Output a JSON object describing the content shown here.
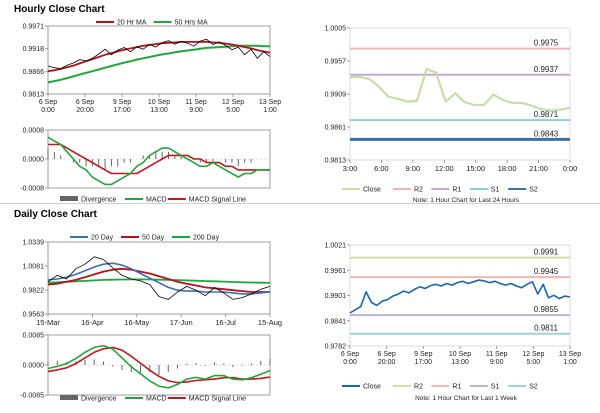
{
  "sections": {
    "hourly": "Hourly Close Chart",
    "daily": "Daily Close Chart"
  },
  "colors": {
    "price": "#000000",
    "ma_short": "#b5121b",
    "ma_long": "#1fa83a",
    "macd": "#1fa83a",
    "signal": "#c4161c",
    "divergence": "#666666",
    "close_h": "#c6dfaa",
    "close_d": "#1a66b3",
    "r2": "#f0b7b0",
    "r1": "#c8a7cf",
    "s1": "#8fcfd6",
    "s2": "#3a6fb0",
    "daily_r2": "#cfe0a5",
    "daily_r1": "#f2b8b0",
    "daily_s1": "#bfb2d3",
    "daily_s2": "#9fd2d9"
  },
  "chart_data": [
    {
      "id": "hourly-price",
      "type": "line",
      "title": "Hourly Close Chart",
      "legend": [
        "20 Hr MA",
        "50 Hrs MA"
      ],
      "yticks": [
        "0.9971",
        "0.9918",
        "0.9866",
        "0.9813"
      ],
      "ylim": [
        0.9813,
        0.9971
      ],
      "xticks": [
        [
          "6 Sep",
          "0:00"
        ],
        [
          "6 Sep",
          "20:00"
        ],
        [
          "9 Sep",
          "17:00"
        ],
        [
          "10 Sep",
          "13:00"
        ],
        [
          "11 Sep",
          "9:00"
        ],
        [
          "12 Sep",
          "5:00"
        ],
        [
          "13 Sep",
          "1:00"
        ]
      ],
      "series": [
        {
          "name": "Close",
          "values": [
            0.9878,
            0.9874,
            0.9872,
            0.988,
            0.9885,
            0.9893,
            0.989,
            0.9896,
            0.9906,
            0.9917,
            0.9904,
            0.9915,
            0.9921,
            0.9911,
            0.9923,
            0.9917,
            0.9928,
            0.9922,
            0.9932,
            0.9937,
            0.9929,
            0.9935,
            0.9931,
            0.9924,
            0.9936,
            0.994,
            0.9928,
            0.9934,
            0.9926,
            0.9916,
            0.9922,
            0.9904,
            0.9917,
            0.9896,
            0.9911,
            0.99
          ]
        },
        {
          "name": "20 Hr MA",
          "values": [
            0.9866,
            0.9868,
            0.9871,
            0.9875,
            0.9879,
            0.9884,
            0.9889,
            0.9894,
            0.9899,
            0.9904,
            0.9908,
            0.9912,
            0.9916,
            0.9919,
            0.9922,
            0.9925,
            0.9927,
            0.9929,
            0.9931,
            0.9932,
            0.9933,
            0.9934,
            0.9934,
            0.9934,
            0.9934,
            0.9934,
            0.9933,
            0.9932,
            0.993,
            0.9928,
            0.9925,
            0.9922,
            0.9919,
            0.9915,
            0.9912,
            0.9909
          ]
        },
        {
          "name": "50 Hrs MA",
          "values": [
            0.984,
            0.9843,
            0.9846,
            0.985,
            0.9854,
            0.9858,
            0.9862,
            0.9866,
            0.987,
            0.9874,
            0.9878,
            0.9882,
            0.9886,
            0.9889,
            0.9893,
            0.9896,
            0.9899,
            0.9902,
            0.9905,
            0.9907,
            0.991,
            0.9912,
            0.9914,
            0.9916,
            0.9918,
            0.992,
            0.9921,
            0.9922,
            0.9923,
            0.9924,
            0.9925,
            0.9925,
            0.9925,
            0.9925,
            0.9924,
            0.9924
          ]
        }
      ]
    },
    {
      "id": "hourly-macd",
      "type": "bar+line",
      "legend": [
        "Divergence",
        "MACD",
        "MACD Signal Line"
      ],
      "yticks": [
        "0.0008",
        "0.0000",
        "-0.0008"
      ],
      "ylim": [
        -0.0008,
        0.0008
      ],
      "divergence": [
        0.0003,
        0.0002,
        0.0001,
        0.0,
        -0.0001,
        -0.0001,
        -0.0002,
        -0.0002,
        -0.0002,
        -0.0003,
        -0.0002,
        -0.0002,
        -0.0001,
        -0.0001,
        0.0,
        0.0001,
        0.0001,
        0.0002,
        0.0002,
        0.0002,
        0.0001,
        0.0001,
        0.0,
        0.0,
        -0.0001,
        -0.0001,
        -0.0001,
        0.0,
        -0.0001,
        -0.0001,
        -0.0002,
        -0.0001,
        -0.0001,
        0.0,
        0.0,
        0.0
      ],
      "series": [
        {
          "name": "MACD",
          "values": [
            0.0006,
            0.0005,
            0.0004,
            0.0002,
            0.0,
            -0.0002,
            -0.0003,
            -0.0005,
            -0.0006,
            -0.0007,
            -0.0007,
            -0.0006,
            -0.0005,
            -0.0004,
            -0.0002,
            -0.0001,
            0.0001,
            0.0002,
            0.0003,
            0.0003,
            0.0002,
            0.0001,
            0.0,
            -0.0001,
            -0.0002,
            -0.0002,
            -0.0001,
            -0.0002,
            -0.0003,
            -0.0004,
            -0.0005,
            -0.0004,
            -0.0004,
            -0.0003,
            -0.0003,
            -0.0003
          ]
        },
        {
          "name": "MACD Signal Line",
          "values": [
            0.0004,
            0.0004,
            0.0004,
            0.0003,
            0.0002,
            0.0001,
            0.0,
            -0.0001,
            -0.0002,
            -0.0003,
            -0.0004,
            -0.0004,
            -0.0004,
            -0.0004,
            -0.0004,
            -0.0003,
            -0.0002,
            -0.0001,
            0.0,
            0.0001,
            0.0001,
            0.0001,
            0.0001,
            0.0,
            0.0,
            -0.0001,
            -0.0001,
            -0.0001,
            -0.0002,
            -0.0002,
            -0.0003,
            -0.0003,
            -0.0003,
            -0.0003,
            -0.0003,
            -0.0003
          ]
        }
      ]
    },
    {
      "id": "hourly-close",
      "type": "line",
      "yticks": [
        "1.0005",
        "0.9957",
        "0.9909",
        "0.9861",
        "0.9813"
      ],
      "ylim": [
        0.9813,
        1.0005
      ],
      "xticks": [
        "3:00",
        "6:00",
        "9:00",
        "12:00",
        "15:00",
        "18:00",
        "21:00",
        "0:00"
      ],
      "levels": [
        {
          "name": "R2",
          "value": 0.9975
        },
        {
          "name": "R1",
          "value": 0.9937
        },
        {
          "name": "S1",
          "value": 0.9871
        },
        {
          "name": "S2",
          "value": 0.9843
        }
      ],
      "level_labels": [
        "0.9975",
        "0.9937",
        "0.9871",
        "0.9843"
      ],
      "legend": [
        "Close",
        "R2",
        "R1",
        "S1",
        "S2"
      ],
      "note": "Note: 1 Hour Chart for Last 24 Hours",
      "series": [
        {
          "name": "Close",
          "values": [
            0.9933,
            0.9934,
            0.9931,
            0.992,
            0.9905,
            0.9902,
            0.9898,
            0.9899,
            0.9945,
            0.994,
            0.9898,
            0.991,
            0.9897,
            0.9893,
            0.9893,
            0.9908,
            0.99,
            0.9896,
            0.9896,
            0.9892,
            0.9887,
            0.9885,
            0.9886,
            0.9889
          ]
        }
      ]
    },
    {
      "id": "daily-price",
      "type": "line",
      "title": "Daily Close Chart",
      "legend": [
        "20 Day",
        "50 Day",
        "200 Day"
      ],
      "yticks": [
        "1.0339",
        "1.0081",
        "0.9822",
        "0.9563"
      ],
      "ylim": [
        0.9563,
        1.0339
      ],
      "xticks": [
        "15-Mar",
        "16-Apr",
        "16-May",
        "17-Jun",
        "16-Jul",
        "15-Aug"
      ],
      "series": [
        {
          "name": "Close",
          "values": [
            0.991,
            0.998,
            0.994,
            1.005,
            1.01,
            1.018,
            1.015,
            1.006,
            0.998,
            0.994,
            0.992,
            0.988,
            0.975,
            0.972,
            0.98,
            0.986,
            0.982,
            0.976,
            0.985,
            0.979,
            0.972,
            0.974,
            0.978,
            0.983,
            0.986
          ]
        },
        {
          "name": "20 Day",
          "values": [
            0.993,
            0.994,
            0.996,
            0.999,
            1.003,
            1.007,
            1.01,
            1.011,
            1.009,
            1.005,
            1.0,
            0.995,
            0.99,
            0.985,
            0.982,
            0.981,
            0.981,
            0.98,
            0.98,
            0.98,
            0.979,
            0.978,
            0.978,
            0.979,
            0.98
          ]
        },
        {
          "name": "50 Day",
          "values": [
            0.988,
            0.989,
            0.991,
            0.993,
            0.996,
            0.999,
            1.002,
            1.004,
            1.005,
            1.004,
            1.002,
            1.0,
            0.997,
            0.994,
            0.991,
            0.989,
            0.987,
            0.985,
            0.984,
            0.983,
            0.982,
            0.981,
            0.98,
            0.98,
            0.98
          ]
        },
        {
          "name": "200 Day",
          "values": [
            0.99,
            0.9905,
            0.991,
            0.9915,
            0.992,
            0.9925,
            0.993,
            0.9933,
            0.9935,
            0.9936,
            0.9936,
            0.9935,
            0.9933,
            0.993,
            0.9928,
            0.9925,
            0.9922,
            0.9918,
            0.9915,
            0.9912,
            0.9908,
            0.9905,
            0.9902,
            0.99,
            0.9898
          ]
        }
      ]
    },
    {
      "id": "daily-macd",
      "type": "bar+line",
      "legend": [
        "Divergence",
        "MACD",
        "MACD Signal Line"
      ],
      "yticks": [
        "0.0085",
        "0.0000",
        "-0.0085"
      ],
      "ylim": [
        -0.0085,
        0.0085
      ],
      "divergence": [
        0.001,
        0.0012,
        0.0008,
        0.001,
        0.0014,
        0.0016,
        0.001,
        -0.0004,
        -0.0014,
        -0.002,
        -0.0024,
        -0.002,
        -0.0028,
        -0.002,
        -0.001,
        0.0004,
        0.0006,
        -0.0002,
        0.0008,
        0.0004,
        -0.0006,
        -0.0002,
        0.0004,
        0.0012,
        0.0018
      ],
      "series": [
        {
          "name": "MACD",
          "values": [
            -0.001,
            -0.0004,
            0.0004,
            0.0018,
            0.0036,
            0.005,
            0.0055,
            0.0045,
            0.002,
            -0.0005,
            -0.0025,
            -0.0045,
            -0.006,
            -0.0065,
            -0.0055,
            -0.004,
            -0.0035,
            -0.004,
            -0.003,
            -0.003,
            -0.004,
            -0.0042,
            -0.0036,
            -0.0026,
            -0.0016
          ]
        },
        {
          "name": "MACD Signal Line",
          "values": [
            -0.0018,
            -0.0014,
            -0.0008,
            0.0004,
            0.002,
            0.0036,
            0.0046,
            0.005,
            0.0042,
            0.0025,
            0.0005,
            -0.0015,
            -0.0032,
            -0.0045,
            -0.005,
            -0.0048,
            -0.0044,
            -0.0042,
            -0.004,
            -0.0036,
            -0.0036,
            -0.004,
            -0.004,
            -0.0038,
            -0.0034
          ]
        }
      ]
    },
    {
      "id": "daily-close",
      "type": "line",
      "yticks": [
        "1.0021",
        "0.9961",
        "0.9901",
        "0.9841",
        "0.9782"
      ],
      "ylim": [
        0.9782,
        1.0021
      ],
      "xticks": [
        [
          "6 Sep",
          "0:00"
        ],
        [
          "6 Sep",
          "20:00"
        ],
        [
          "9 Sep",
          "17:00"
        ],
        [
          "10 Sep",
          "13:00"
        ],
        [
          "11 Sep",
          "9:00"
        ],
        [
          "12 Sep",
          "5:00"
        ],
        [
          "13 Sep",
          "1:00"
        ]
      ],
      "levels": [
        {
          "name": "R2",
          "value": 0.9991
        },
        {
          "name": "R1",
          "value": 0.9945
        },
        {
          "name": "S1",
          "value": 0.9855
        },
        {
          "name": "S2",
          "value": 0.9811
        }
      ],
      "level_labels": [
        "0.9991",
        "0.9945",
        "0.9855",
        "0.9811"
      ],
      "legend": [
        "Close",
        "R2",
        "R1",
        "S1",
        "S2"
      ],
      "note": "Note: 1 Hour Chart for Last 1 Week",
      "series": [
        {
          "name": "Close",
          "values": [
            0.986,
            0.9868,
            0.9875,
            0.991,
            0.9885,
            0.9878,
            0.9888,
            0.9892,
            0.99,
            0.9905,
            0.9912,
            0.9908,
            0.9916,
            0.9922,
            0.9918,
            0.9925,
            0.9928,
            0.9924,
            0.993,
            0.9926,
            0.9932,
            0.9935,
            0.993,
            0.9934,
            0.9938,
            0.9936,
            0.9932,
            0.9935,
            0.993,
            0.9926,
            0.993,
            0.9924,
            0.992,
            0.9928,
            0.9934,
            0.9905,
            0.9928,
            0.9896,
            0.9902,
            0.9894,
            0.99,
            0.9898
          ]
        }
      ]
    }
  ]
}
